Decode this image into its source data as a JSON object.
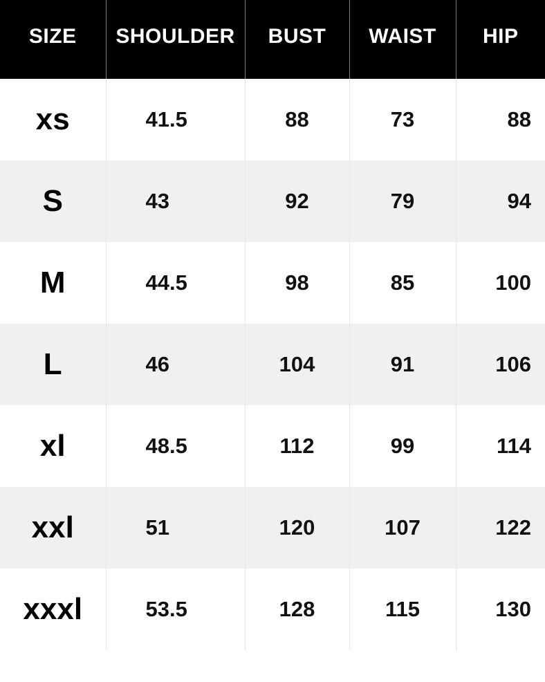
{
  "table": {
    "headers": [
      "SIZE",
      "SHOULDER",
      "BUST",
      "WAIST",
      "HIP"
    ],
    "rows": [
      [
        "xs",
        "41.5",
        "88",
        "73",
        "88"
      ],
      [
        "S",
        "43",
        "92",
        "79",
        "94"
      ],
      [
        "M",
        "44.5",
        "98",
        "85",
        "100"
      ],
      [
        "L",
        "46",
        "104",
        "91",
        "106"
      ],
      [
        "xl",
        "48.5",
        "112",
        "99",
        "114"
      ],
      [
        "xxl",
        "51",
        "120",
        "107",
        "122"
      ],
      [
        "xxxl",
        "53.5",
        "128",
        "115",
        "130"
      ]
    ]
  },
  "colors": {
    "header_background": "#000000",
    "header_text": "#ffffff",
    "stripe_background": "#f0f0f2",
    "body_text": "#111111"
  }
}
